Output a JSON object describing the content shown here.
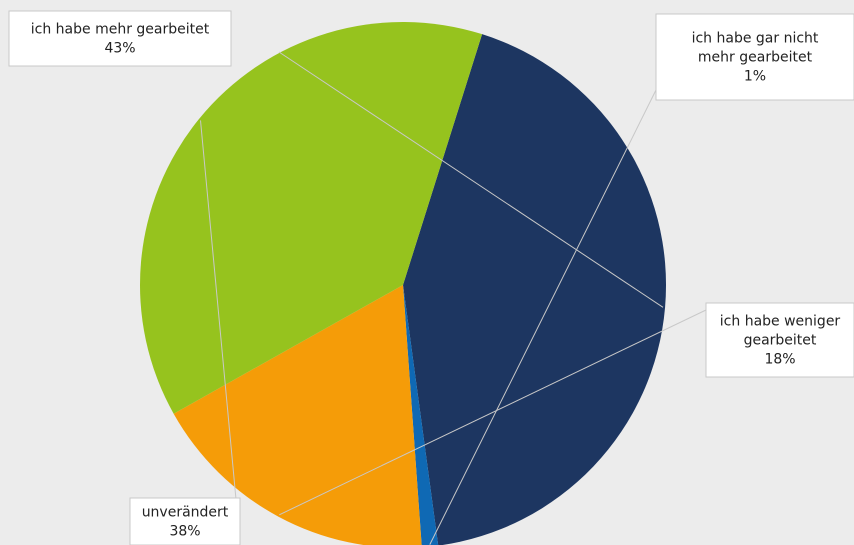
{
  "chart_data": {
    "type": "pie",
    "title": "",
    "slices": [
      {
        "id": "mehr",
        "lines": [
          "ich habe mehr gearbeitet"
        ],
        "pct": "43%",
        "value": 43,
        "color": "#1d3661"
      },
      {
        "id": "gar_nicht",
        "lines": [
          "ich habe gar nicht",
          "mehr gearbeitet"
        ],
        "pct": "1%",
        "value": 1,
        "color": "#0f69b4"
      },
      {
        "id": "weniger",
        "lines": [
          "ich habe weniger",
          "gearbeitet"
        ],
        "pct": "18%",
        "value": 18,
        "color": "#f59c08"
      },
      {
        "id": "unveraendert",
        "lines": [
          "unverändert"
        ],
        "pct": "38%",
        "value": 38,
        "color": "#96c31e"
      }
    ]
  }
}
